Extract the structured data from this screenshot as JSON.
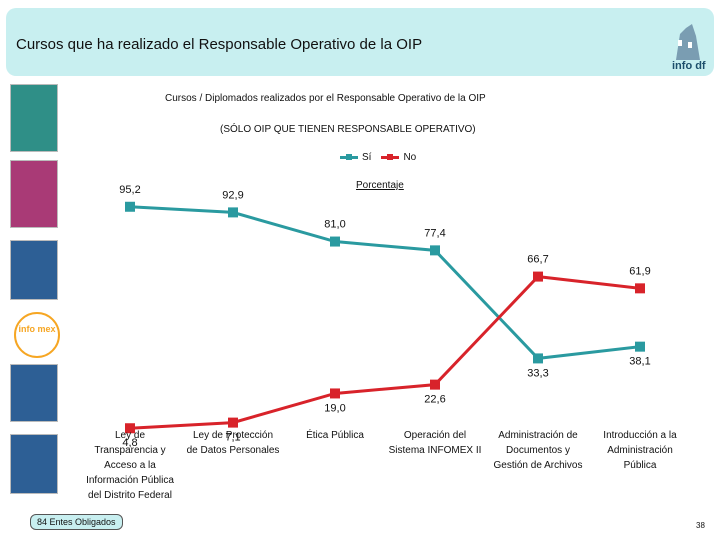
{
  "header": {
    "title": "Cursos que ha realizado el Responsable Operativo de la OIP",
    "logo_text": "info df"
  },
  "sidebar": {
    "infomex_text": "info mex"
  },
  "footer": {
    "badge": "84 Entes Obligados",
    "page_number": "38"
  },
  "colors": {
    "si": "#2a9aa0",
    "no": "#d8232a",
    "header_bg": "#c8eff0"
  },
  "chart_data": {
    "type": "line",
    "title": "Cursos / Diplomados realizados por el Responsable Operativo de la OIP",
    "subtitle": "(SÓLO OIP QUE TIENEN RESPONSABLE OPERATIVO)",
    "ylabel": "Porcentaje",
    "ylim": [
      0,
      100
    ],
    "grid": false,
    "legend_position": "top-center",
    "categories": [
      [
        "Ley de",
        "Transparencia y",
        "Acceso a la",
        "Información Pública",
        "del Distrito Federal"
      ],
      [
        "Ley de Protección",
        "de Datos Personales"
      ],
      [
        "Ética Pública"
      ],
      [
        "Operación del",
        "Sistema INFOMEX II"
      ],
      [
        "Administración de",
        "Documentos y",
        "Gestión de Archivos"
      ],
      [
        "Introducción a la",
        "Administración",
        "Pública"
      ]
    ],
    "series": [
      {
        "name": "Sí",
        "values": [
          95.2,
          92.9,
          81.0,
          77.4,
          33.3,
          38.1
        ],
        "labels": [
          "95,2",
          "92,9",
          "81,0",
          "77,4",
          "33,3",
          "38,1"
        ]
      },
      {
        "name": "No",
        "values": [
          4.8,
          7.1,
          19.0,
          22.6,
          66.7,
          61.9
        ],
        "labels": [
          "4,8",
          "7,1",
          "19,0",
          "22,6",
          "66,7",
          "61,9"
        ]
      }
    ]
  }
}
